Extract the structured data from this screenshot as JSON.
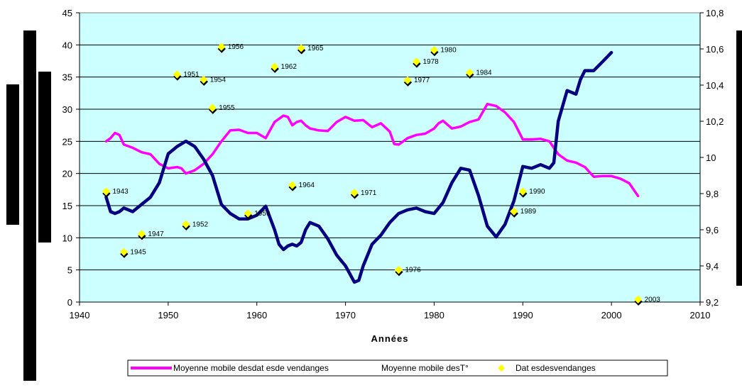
{
  "chart_data": {
    "type": "line",
    "xlabel": "Années",
    "xlim": [
      1940,
      2010
    ],
    "x_ticks": [
      1940,
      1950,
      1960,
      1970,
      1980,
      1990,
      2000,
      2010
    ],
    "y_left_lim": [
      0,
      45
    ],
    "y_left_ticks": [
      0,
      5,
      10,
      15,
      20,
      25,
      30,
      35,
      40,
      45
    ],
    "y_right_lim": [
      9.2,
      10.8
    ],
    "y_right_ticks": [
      "9,2",
      "9,4",
      "9,6",
      "9,8",
      "10",
      "10,2",
      "10,4",
      "10,6",
      "10,8"
    ],
    "grid": "horizontal",
    "background_color": "#ccffff",
    "legend_position": "bottom",
    "series": [
      {
        "name": "Moyenne mobile des dates de vendanges",
        "axis": "left",
        "color": "#ff00ff",
        "legend_label": "Moyenne mobile desdat esde vendanges",
        "x": [
          1943,
          1943.5,
          1944,
          1944.5,
          1945,
          1946,
          1947,
          1948,
          1949,
          1950,
          1951,
          1951.5,
          1952,
          1953,
          1954,
          1955,
          1956,
          1957,
          1958,
          1959,
          1960,
          1961,
          1962,
          1963,
          1963.5,
          1964,
          1964.5,
          1965,
          1965.5,
          1966,
          1967,
          1968,
          1969,
          1970,
          1971,
          1972,
          1973,
          1974,
          1975,
          1975.5,
          1976,
          1977,
          1978,
          1979,
          1980,
          1980.5,
          1981,
          1982,
          1983,
          1984,
          1985,
          1986,
          1987,
          1988,
          1989,
          1990,
          1991,
          1992,
          1993,
          1994,
          1995,
          1996,
          1997,
          1998,
          1999,
          2000,
          2001,
          2002,
          2003
        ],
        "values": [
          25,
          25.5,
          26.3,
          26,
          24.5,
          24,
          23.3,
          23,
          21.5,
          20.8,
          21,
          20.8,
          20,
          20.5,
          21.5,
          23,
          25,
          26.7,
          26.8,
          26.3,
          26.3,
          25.5,
          28,
          29,
          28.8,
          27.5,
          28,
          28.2,
          27.5,
          27,
          26.7,
          26.6,
          28,
          28.8,
          28.2,
          28.3,
          27.2,
          27.8,
          26.5,
          24.6,
          24.5,
          25.5,
          26,
          26.2,
          27,
          27.8,
          28.2,
          27,
          27.3,
          28,
          28.4,
          30.8,
          30.5,
          29.5,
          28,
          25.3,
          25.3,
          25.4,
          25,
          23,
          22,
          21.7,
          21,
          19.5,
          19.6,
          19.6,
          19.2,
          18.5,
          16.5
        ]
      },
      {
        "name": "Moyenne mobile des T°",
        "axis": "right",
        "color": "#000080",
        "legend_label": "Moyenne mobile desT°",
        "x": [
          1943,
          1943.5,
          1944,
          1944.5,
          1945,
          1945.5,
          1946,
          1947,
          1948,
          1949,
          1950,
          1951,
          1952,
          1953,
          1954,
          1955,
          1956,
          1957,
          1958,
          1959,
          1960,
          1961,
          1962,
          1962.5,
          1963,
          1963.5,
          1964,
          1964.5,
          1965,
          1965.5,
          1966,
          1967,
          1968,
          1969,
          1970,
          1971,
          1971.5,
          1972,
          1973,
          1974,
          1975,
          1976,
          1977,
          1978,
          1979,
          1980,
          1981,
          1982,
          1983,
          1984,
          1985,
          1986,
          1987,
          1988,
          1989,
          1990,
          1991,
          1992,
          1993,
          1993.5,
          1994,
          1995,
          1996,
          1996.5,
          1997,
          1998,
          1999,
          2000
        ],
        "values": [
          9.78,
          9.7,
          9.69,
          9.7,
          9.72,
          9.71,
          9.7,
          9.74,
          9.78,
          9.86,
          10.02,
          10.06,
          10.09,
          10.06,
          9.99,
          9.9,
          9.74,
          9.69,
          9.66,
          9.66,
          9.68,
          9.73,
          9.6,
          9.52,
          9.49,
          9.51,
          9.52,
          9.51,
          9.53,
          9.6,
          9.64,
          9.62,
          9.55,
          9.46,
          9.4,
          9.31,
          9.32,
          9.4,
          9.52,
          9.57,
          9.64,
          9.69,
          9.71,
          9.72,
          9.7,
          9.69,
          9.75,
          9.86,
          9.94,
          9.93,
          9.79,
          9.62,
          9.56,
          9.63,
          9.76,
          9.95,
          9.94,
          9.96,
          9.94,
          9.97,
          10.2,
          10.37,
          10.35,
          10.43,
          10.48,
          10.48,
          10.53,
          10.58
        ]
      },
      {
        "name": "Dates des vendanges",
        "axis": "left",
        "color": "#ffff00",
        "legend_label": "Dat esdesvendanges",
        "points": [
          {
            "x": 1943,
            "y": 17.2,
            "label": "1943"
          },
          {
            "x": 1945,
            "y": 7.8,
            "label": "1945"
          },
          {
            "x": 1947,
            "y": 10.6,
            "label": "1947"
          },
          {
            "x": 1951,
            "y": 35.4,
            "label": "1951"
          },
          {
            "x": 1952,
            "y": 12.1,
            "label": "1952"
          },
          {
            "x": 1954,
            "y": 34.6,
            "label": "1954"
          },
          {
            "x": 1955,
            "y": 30.2,
            "label": "1955"
          },
          {
            "x": 1956,
            "y": 39.7,
            "label": "1956"
          },
          {
            "x": 1959,
            "y": 13.8,
            "label": "1959"
          },
          {
            "x": 1962,
            "y": 36.6,
            "label": "1962"
          },
          {
            "x": 1964,
            "y": 18.2,
            "label": "1964"
          },
          {
            "x": 1965,
            "y": 39.5,
            "label": "1965"
          },
          {
            "x": 1971,
            "y": 17.0,
            "label": "1971"
          },
          {
            "x": 1976,
            "y": 5.0,
            "label": "1976"
          },
          {
            "x": 1977,
            "y": 34.5,
            "label": "1977"
          },
          {
            "x": 1978,
            "y": 37.4,
            "label": "1978"
          },
          {
            "x": 1980,
            "y": 39.2,
            "label": "1980"
          },
          {
            "x": 1984,
            "y": 35.7,
            "label": "1984"
          },
          {
            "x": 1989,
            "y": 14.1,
            "label": "1989"
          },
          {
            "x": 1990,
            "y": 17.2,
            "label": "1990"
          },
          {
            "x": 2003,
            "y": 0.4,
            "label": "2003"
          }
        ]
      }
    ]
  }
}
